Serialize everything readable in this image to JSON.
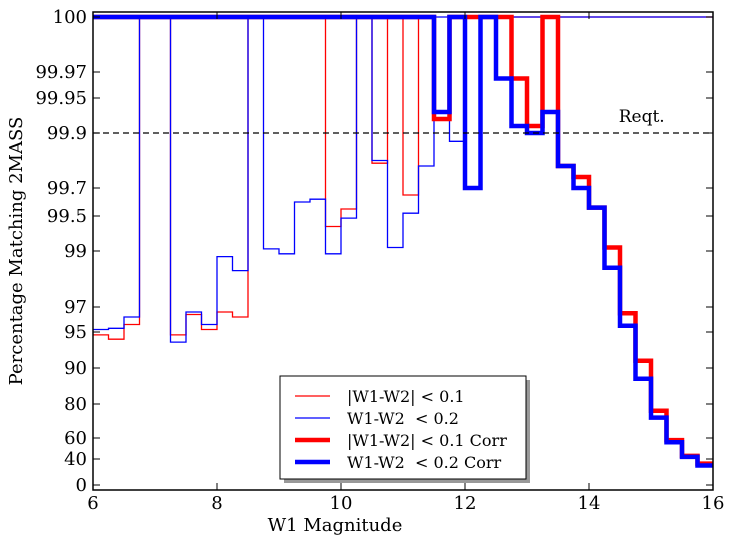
{
  "chart_data": {
    "type": "line",
    "step": true,
    "xlabel": "W1 Magnitude",
    "ylabel": "Percentage Matching 2MASS",
    "xlim": [
      6,
      16
    ],
    "x_ticks": [
      6,
      8,
      10,
      12,
      14,
      16
    ],
    "y_scale": "nonlinear (compressed toward 100)",
    "y_ticks": [
      "0",
      "40",
      "60",
      "80",
      "90",
      "95",
      "97",
      "99",
      "99.5",
      "99.7",
      "99.9",
      "99.95",
      "99.97",
      "100"
    ],
    "requirement": {
      "label": "Reqt.",
      "value": 99.9
    },
    "grid": false,
    "legend_loc": "lower center",
    "bin_edges": [
      6.0,
      6.25,
      6.5,
      6.75,
      7.0,
      7.25,
      7.5,
      7.75,
      8.0,
      8.25,
      8.5,
      8.75,
      9.0,
      9.25,
      9.5,
      9.75,
      10.0,
      10.25,
      10.5,
      10.75,
      11.0,
      11.25,
      11.5,
      11.75,
      12.0,
      12.25,
      12.5,
      12.75,
      13.0,
      13.25,
      13.5,
      13.75,
      14.0,
      14.25,
      14.5,
      14.75,
      15.0,
      15.25,
      15.5,
      15.75,
      16.0
    ],
    "series": [
      {
        "name": "|W1-W2| < 0.1",
        "color": "#ff0000",
        "width": 1.3,
        "values": [
          94.6,
          94.0,
          95.6,
          100,
          100,
          94.6,
          96.4,
          95.2,
          96.6,
          96.2,
          100,
          100,
          100,
          100,
          100,
          99.35,
          99.55,
          100,
          99.79,
          100,
          99.65,
          100,
          99.92,
          100,
          100,
          100,
          100,
          100,
          100,
          100,
          100,
          100,
          100,
          100,
          100,
          100,
          100,
          100,
          100,
          100
        ]
      },
      {
        "name": "W1-W2  < 0.2",
        "color": "#0000ff",
        "width": 1.3,
        "values": [
          95.2,
          95.3,
          96.2,
          100,
          100,
          93.6,
          96.6,
          95.6,
          98.8,
          98.3,
          100,
          99.03,
          98.9,
          99.6,
          99.62,
          98.9,
          99.47,
          100,
          99.8,
          99.05,
          99.52,
          99.78,
          100,
          99.87,
          100,
          100,
          100,
          100,
          100,
          100,
          100,
          100,
          100,
          100,
          100,
          100,
          100,
          100,
          100,
          100
        ]
      },
      {
        "name": "|W1-W2| < 0.1 Corr",
        "color": "#ff0000",
        "width": 4.5,
        "values": [
          100,
          100,
          100,
          100,
          100,
          100,
          100,
          100,
          100,
          100,
          100,
          100,
          100,
          100,
          100,
          100,
          100,
          100,
          100,
          100,
          100,
          100,
          99.92,
          100,
          100,
          100,
          100,
          99.965,
          99.91,
          100,
          99.78,
          99.74,
          99.56,
          99.05,
          96.5,
          91,
          76,
          58,
          43,
          33
        ]
      },
      {
        "name": "W1-W2  < 0.2 Corr",
        "color": "#0000ff",
        "width": 4.5,
        "values": [
          100,
          100,
          100,
          100,
          100,
          100,
          100,
          100,
          100,
          100,
          100,
          100,
          100,
          100,
          100,
          100,
          100,
          100,
          100,
          100,
          100,
          100,
          99.93,
          100,
          99.7,
          100,
          99.965,
          99.91,
          99.9,
          99.93,
          99.78,
          99.7,
          99.56,
          98.4,
          95.5,
          87,
          72,
          56,
          42,
          30
        ]
      }
    ]
  }
}
